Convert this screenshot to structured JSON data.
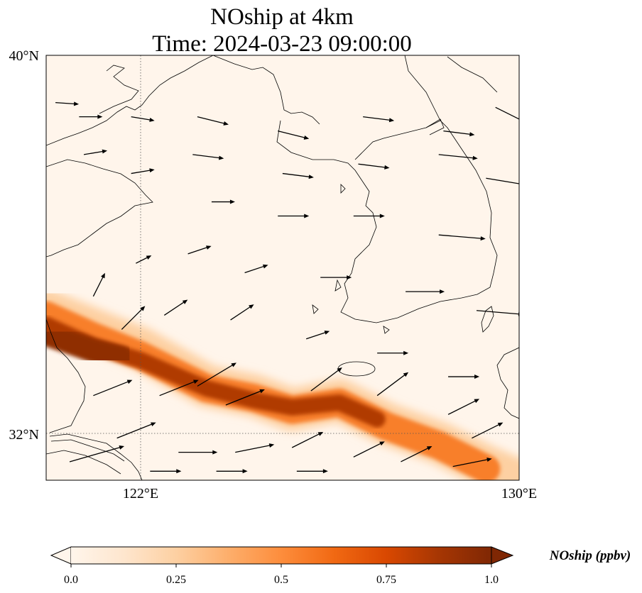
{
  "title_line1": "NOship at 4km",
  "title_line2": "Time: 2024-03-23 09:00:00",
  "map": {
    "lon_range": [
      120,
      130
    ],
    "lat_range": [
      31,
      40
    ],
    "lon_ticks": [
      {
        "v": 122,
        "label": "122°E"
      },
      {
        "v": 130,
        "label": "130°E"
      }
    ],
    "lat_ticks": [
      {
        "v": 40,
        "label": "40°N"
      },
      {
        "v": 32,
        "label": "32°N"
      }
    ],
    "gridlines": "dotted",
    "background_color": "#fff5eb"
  },
  "colorbar": {
    "label": "NOship (ppbv)",
    "ticks": [
      "0.0",
      "0.25",
      "0.5",
      "0.75",
      "1.0"
    ],
    "min": 0.0,
    "max": 1.0,
    "extend": "both",
    "colormap": [
      "#fff5eb",
      "#fee6ce",
      "#fdd0a2",
      "#fdae6b",
      "#fd8d3c",
      "#f16913",
      "#d94801",
      "#a63603",
      "#7f2704"
    ]
  },
  "chart_data": {
    "type": "heatmap",
    "variable": "NOship",
    "units": "ppbv",
    "plume_bands": [
      {
        "points": [
          [
            120.0,
            34.6
          ],
          [
            121.0,
            34.2
          ],
          [
            122.0,
            33.8
          ],
          [
            123.4,
            33.0
          ],
          [
            124.4,
            32.8
          ],
          [
            125.2,
            32.5
          ],
          [
            126.2,
            32.7
          ],
          [
            127.2,
            32.2
          ],
          [
            128.3,
            31.8
          ],
          [
            129.3,
            31.3
          ],
          [
            130.0,
            31.0
          ]
        ],
        "width_deg": 0.9,
        "value": 0.25
      },
      {
        "points": [
          [
            120.0,
            34.5
          ],
          [
            121.0,
            34.05
          ],
          [
            122.0,
            33.65
          ],
          [
            123.4,
            32.95
          ],
          [
            124.4,
            32.75
          ],
          [
            125.2,
            32.5
          ],
          [
            126.2,
            32.65
          ],
          [
            127.2,
            32.15
          ],
          [
            128.3,
            31.75
          ],
          [
            129.3,
            31.25
          ]
        ],
        "width_deg": 0.6,
        "value": 0.55
      },
      {
        "points": [
          [
            120.0,
            34.3
          ],
          [
            121.0,
            33.85
          ],
          [
            122.0,
            33.55
          ],
          [
            123.4,
            32.95
          ],
          [
            124.4,
            32.7
          ],
          [
            125.2,
            32.55
          ],
          [
            126.2,
            32.65
          ],
          [
            127.0,
            32.3
          ]
        ],
        "width_deg": 0.35,
        "value": 0.85
      },
      {
        "points": [
          [
            120.0,
            34.1
          ],
          [
            121.0,
            33.75
          ],
          [
            121.6,
            33.6
          ]
        ],
        "width_deg": 0.5,
        "value": 0.95
      }
    ],
    "wind_vectors": [
      [
        120.2,
        39.0,
        0.3,
        -0.02
      ],
      [
        120.7,
        38.7,
        0.3,
        0.0
      ],
      [
        121.8,
        38.7,
        0.3,
        -0.05
      ],
      [
        123.2,
        38.7,
        0.4,
        -0.1
      ],
      [
        124.9,
        38.4,
        0.4,
        -0.1
      ],
      [
        126.7,
        38.7,
        0.4,
        -0.05
      ],
      [
        128.4,
        38.4,
        0.4,
        -0.05
      ],
      [
        129.5,
        38.9,
        0.4,
        -0.2
      ],
      [
        120.8,
        37.9,
        0.3,
        0.05
      ],
      [
        121.8,
        37.5,
        0.3,
        0.05
      ],
      [
        123.1,
        37.9,
        0.4,
        -0.05
      ],
      [
        125.0,
        37.5,
        0.4,
        -0.05
      ],
      [
        126.6,
        37.7,
        0.4,
        -0.05
      ],
      [
        128.3,
        37.9,
        0.5,
        -0.05
      ],
      [
        129.3,
        37.4,
        0.6,
        -0.1
      ],
      [
        123.5,
        36.9,
        0.3,
        0.0
      ],
      [
        124.9,
        36.6,
        0.4,
        0.0
      ],
      [
        126.5,
        36.6,
        0.4,
        0.0
      ],
      [
        128.3,
        36.2,
        0.6,
        -0.05
      ],
      [
        121.9,
        35.6,
        0.2,
        0.1
      ],
      [
        123.0,
        35.8,
        0.3,
        0.1
      ],
      [
        124.2,
        35.4,
        0.3,
        0.1
      ],
      [
        125.8,
        35.3,
        0.4,
        0.0
      ],
      [
        127.6,
        35.0,
        0.5,
        0.0
      ],
      [
        129.1,
        34.6,
        0.6,
        -0.05
      ],
      [
        121.0,
        34.9,
        0.15,
        0.3
      ],
      [
        121.6,
        34.2,
        0.3,
        0.3
      ],
      [
        122.5,
        34.5,
        0.3,
        0.2
      ],
      [
        123.9,
        34.4,
        0.3,
        0.2
      ],
      [
        125.5,
        34.0,
        0.3,
        0.1
      ],
      [
        127.0,
        33.7,
        0.4,
        0.0
      ],
      [
        128.5,
        33.2,
        0.4,
        0.0
      ],
      [
        121.0,
        32.8,
        0.5,
        0.2
      ],
      [
        122.4,
        32.8,
        0.5,
        0.2
      ],
      [
        123.2,
        33.0,
        0.5,
        0.3
      ],
      [
        123.8,
        32.6,
        0.5,
        0.2
      ],
      [
        125.6,
        32.9,
        0.4,
        0.3
      ],
      [
        127.0,
        32.8,
        0.4,
        0.3
      ],
      [
        128.5,
        32.4,
        0.4,
        0.2
      ],
      [
        129.0,
        31.9,
        0.4,
        0.2
      ],
      [
        121.5,
        31.9,
        0.5,
        0.2
      ],
      [
        122.8,
        31.6,
        0.5,
        0.0
      ],
      [
        124.0,
        31.6,
        0.5,
        0.1
      ],
      [
        125.2,
        31.7,
        0.4,
        0.2
      ],
      [
        126.5,
        31.5,
        0.4,
        0.2
      ],
      [
        127.5,
        31.4,
        0.4,
        0.2
      ],
      [
        128.6,
        31.3,
        0.5,
        0.1
      ],
      [
        120.5,
        31.4,
        0.7,
        0.2
      ],
      [
        122.2,
        31.2,
        0.4,
        0.0
      ],
      [
        123.6,
        31.2,
        0.4,
        0.0
      ],
      [
        125.3,
        31.2,
        0.4,
        0.0
      ]
    ]
  }
}
